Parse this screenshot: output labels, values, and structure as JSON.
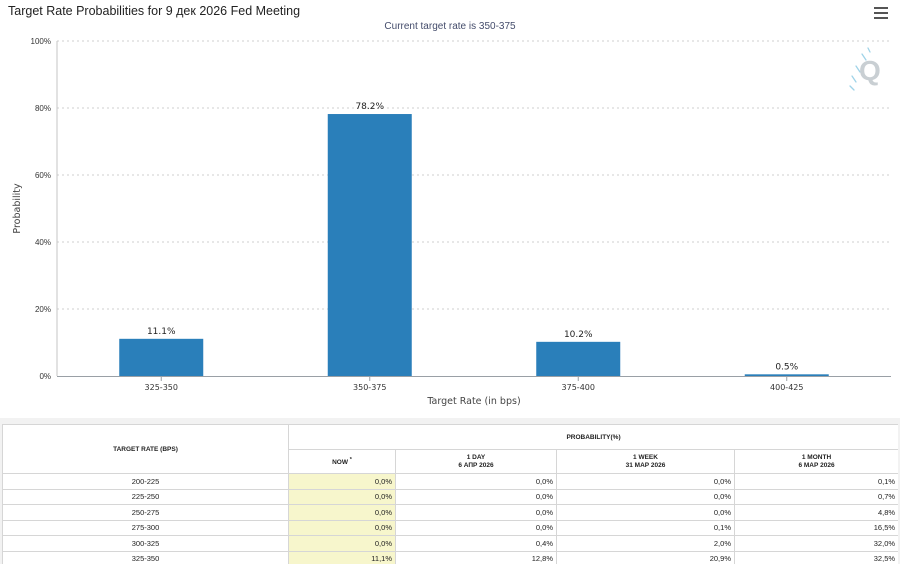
{
  "header": {
    "title": "Target Rate Probabilities for 9 дек 2026 Fed Meeting",
    "subtitle": "Current target rate is 350-375"
  },
  "chart_data": {
    "type": "bar",
    "categories": [
      "325-350",
      "350-375",
      "375-400",
      "400-425"
    ],
    "values": [
      11.1,
      78.2,
      10.2,
      0.5
    ],
    "value_labels": [
      "11.1%",
      "78.2%",
      "10.2%",
      "0.5%"
    ],
    "title": "Target Rate Probabilities for 9 дек 2026 Fed Meeting",
    "subtitle": "Current target rate is 350-375",
    "xlabel": "Target Rate (in bps)",
    "ylabel": "Probability",
    "ylim": [
      0,
      100
    ],
    "yticks": [
      0,
      20,
      40,
      60,
      80,
      100
    ],
    "ytick_labels": [
      "0%",
      "20%",
      "40%",
      "60%",
      "80%",
      "100%"
    ],
    "grid": true,
    "bar_color": "#2a7fba"
  },
  "table": {
    "rate_header": "TARGET RATE (BPS)",
    "prob_header": "PROBABILITY(%)",
    "now_header": "NOW",
    "now_marker": "*",
    "columns": [
      {
        "line1": "1 DAY",
        "line2": "6 АПР 2026"
      },
      {
        "line1": "1 WEEK",
        "line2": "31 МАР 2026"
      },
      {
        "line1": "1 MONTH",
        "line2": "6 МАР 2026"
      }
    ],
    "rows": [
      {
        "rate": "200-225",
        "now": "0,0%",
        "day": "0,0%",
        "week": "0,0%",
        "month": "0,1%"
      },
      {
        "rate": "225-250",
        "now": "0,0%",
        "day": "0,0%",
        "week": "0,0%",
        "month": "0,7%"
      },
      {
        "rate": "250-275",
        "now": "0,0%",
        "day": "0,0%",
        "week": "0,0%",
        "month": "4,8%"
      },
      {
        "rate": "275-300",
        "now": "0,0%",
        "day": "0,0%",
        "week": "0,1%",
        "month": "16,5%"
      },
      {
        "rate": "300-325",
        "now": "0,0%",
        "day": "0,4%",
        "week": "2,0%",
        "month": "32,0%"
      },
      {
        "rate": "325-350",
        "now": "11,1%",
        "day": "12,8%",
        "week": "20,9%",
        "month": "32,5%"
      }
    ]
  },
  "colors": {
    "bar": "#2a7fba",
    "now_column": "#f7f6cc"
  }
}
